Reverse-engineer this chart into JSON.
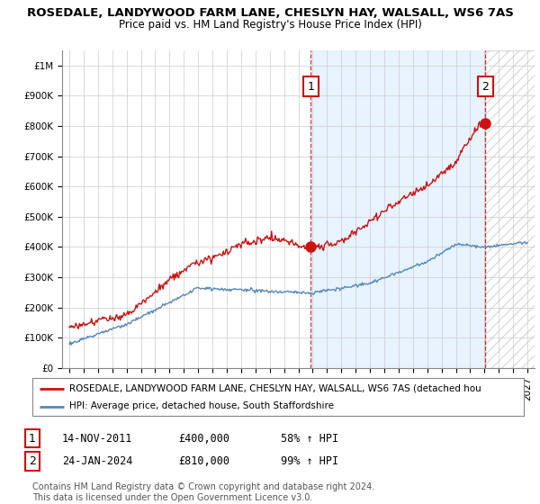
{
  "title_line1": "ROSEDALE, LANDYWOOD FARM LANE, CHESLYN HAY, WALSALL, WS6 7AS",
  "title_line2": "Price paid vs. HM Land Registry's House Price Index (HPI)",
  "ylim": [
    0,
    1050000
  ],
  "yticks": [
    0,
    100000,
    200000,
    300000,
    400000,
    500000,
    600000,
    700000,
    800000,
    900000,
    1000000
  ],
  "ytick_labels": [
    "£0",
    "£100K",
    "£200K",
    "£300K",
    "£400K",
    "£500K",
    "£600K",
    "£700K",
    "£800K",
    "£900K",
    "£1M"
  ],
  "x_start_year": 1995,
  "x_end_year": 2027,
  "xtick_years": [
    1995,
    1996,
    1997,
    1998,
    1999,
    2000,
    2001,
    2002,
    2003,
    2004,
    2005,
    2006,
    2007,
    2008,
    2009,
    2010,
    2011,
    2012,
    2013,
    2014,
    2015,
    2016,
    2017,
    2018,
    2019,
    2020,
    2021,
    2022,
    2023,
    2024,
    2025,
    2026,
    2027
  ],
  "hpi_color": "#5588bb",
  "price_color": "#cc1111",
  "dashed_line_color": "#cc1111",
  "shade_color": "#ddeeff",
  "hatch_color": "#dddddd",
  "point1_year": 2011.87,
  "point1_price": 400000,
  "point1_label": "1",
  "point2_year": 2024.07,
  "point2_price": 810000,
  "point2_label": "2",
  "label1_price_display": 930000,
  "label2_price_display": 930000,
  "legend_price_label": "ROSEDALE, LANDYWOOD FARM LANE, CHESLYN HAY, WALSALL, WS6 7AS (detached hou",
  "legend_hpi_label": "HPI: Average price, detached house, South Staffordshire",
  "table_row1": [
    "1",
    "14-NOV-2011",
    "£400,000",
    "58% ↑ HPI"
  ],
  "table_row2": [
    "2",
    "24-JAN-2024",
    "£810,000",
    "99% ↑ HPI"
  ],
  "footer_line1": "Contains HM Land Registry data © Crown copyright and database right 2024.",
  "footer_line2": "This data is licensed under the Open Government Licence v3.0.",
  "background_color": "#ffffff",
  "grid_color": "#cccccc"
}
